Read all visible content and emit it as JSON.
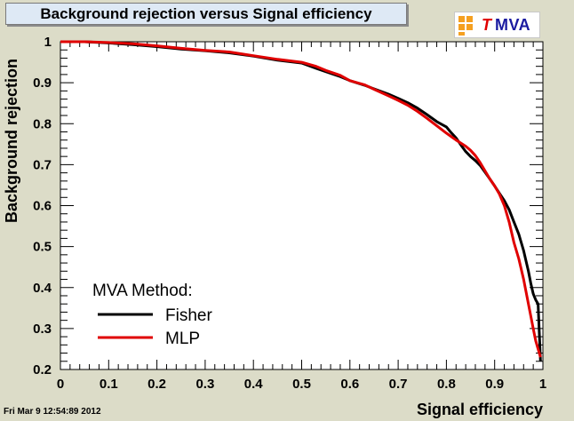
{
  "title": "Background rejection versus Signal efficiency",
  "logo": {
    "t": "T",
    "mva": "MVA"
  },
  "timestamp": "Fri Mar  9 12:54:89 2012",
  "chart_data": {
    "type": "line",
    "title": "Background rejection versus Signal efficiency",
    "xlabel": "Signal efficiency",
    "ylabel": "Background rejection",
    "xlim": [
      0,
      1
    ],
    "ylim": [
      0.2,
      1
    ],
    "xticks": [
      "0",
      "0.1",
      "0.2",
      "0.3",
      "0.4",
      "0.5",
      "0.6",
      "0.7",
      "0.8",
      "0.9",
      "1"
    ],
    "yticks": [
      "0.2",
      "0.3",
      "0.4",
      "0.5",
      "0.6",
      "0.7",
      "0.8",
      "0.9",
      "1"
    ],
    "grid": false,
    "legend": {
      "title": "MVA Method:",
      "position": "bottom-left"
    },
    "series": [
      {
        "name": "Fisher",
        "color": "#000000",
        "x": [
          0.0,
          0.05,
          0.1,
          0.15,
          0.2,
          0.25,
          0.3,
          0.35,
          0.4,
          0.45,
          0.5,
          0.53,
          0.55,
          0.58,
          0.6,
          0.63,
          0.65,
          0.68,
          0.7,
          0.72,
          0.74,
          0.76,
          0.78,
          0.8,
          0.81,
          0.82,
          0.83,
          0.84,
          0.85,
          0.86,
          0.87,
          0.88,
          0.89,
          0.9,
          0.91,
          0.92,
          0.93,
          0.94,
          0.95,
          0.955,
          0.96,
          0.965,
          0.97,
          0.975,
          0.98,
          0.985,
          0.99,
          0.995
        ],
        "y": [
          1.0,
          1.0,
          0.997,
          0.993,
          0.988,
          0.982,
          0.978,
          0.973,
          0.965,
          0.955,
          0.948,
          0.935,
          0.927,
          0.915,
          0.905,
          0.894,
          0.885,
          0.872,
          0.862,
          0.851,
          0.838,
          0.822,
          0.805,
          0.792,
          0.778,
          0.765,
          0.748,
          0.732,
          0.72,
          0.71,
          0.698,
          0.682,
          0.665,
          0.648,
          0.63,
          0.612,
          0.59,
          0.56,
          0.53,
          0.51,
          0.49,
          0.465,
          0.44,
          0.41,
          0.385,
          0.37,
          0.36,
          0.22
        ]
      },
      {
        "name": "MLP",
        "color": "#e00000",
        "x": [
          0.0,
          0.05,
          0.1,
          0.15,
          0.2,
          0.25,
          0.3,
          0.35,
          0.4,
          0.45,
          0.5,
          0.53,
          0.55,
          0.58,
          0.6,
          0.63,
          0.65,
          0.68,
          0.7,
          0.72,
          0.74,
          0.76,
          0.78,
          0.8,
          0.82,
          0.84,
          0.85,
          0.86,
          0.87,
          0.88,
          0.89,
          0.9,
          0.91,
          0.92,
          0.93,
          0.94,
          0.95,
          0.96,
          0.97,
          0.975,
          0.98,
          0.985,
          0.99,
          0.995
        ],
        "y": [
          1.0,
          1.0,
          0.998,
          0.995,
          0.99,
          0.984,
          0.979,
          0.975,
          0.966,
          0.957,
          0.95,
          0.94,
          0.93,
          0.918,
          0.905,
          0.895,
          0.884,
          0.868,
          0.857,
          0.845,
          0.83,
          0.813,
          0.795,
          0.777,
          0.76,
          0.745,
          0.735,
          0.722,
          0.705,
          0.685,
          0.665,
          0.648,
          0.628,
          0.6,
          0.56,
          0.51,
          0.47,
          0.42,
          0.36,
          0.33,
          0.3,
          0.27,
          0.25,
          0.23
        ]
      }
    ]
  }
}
